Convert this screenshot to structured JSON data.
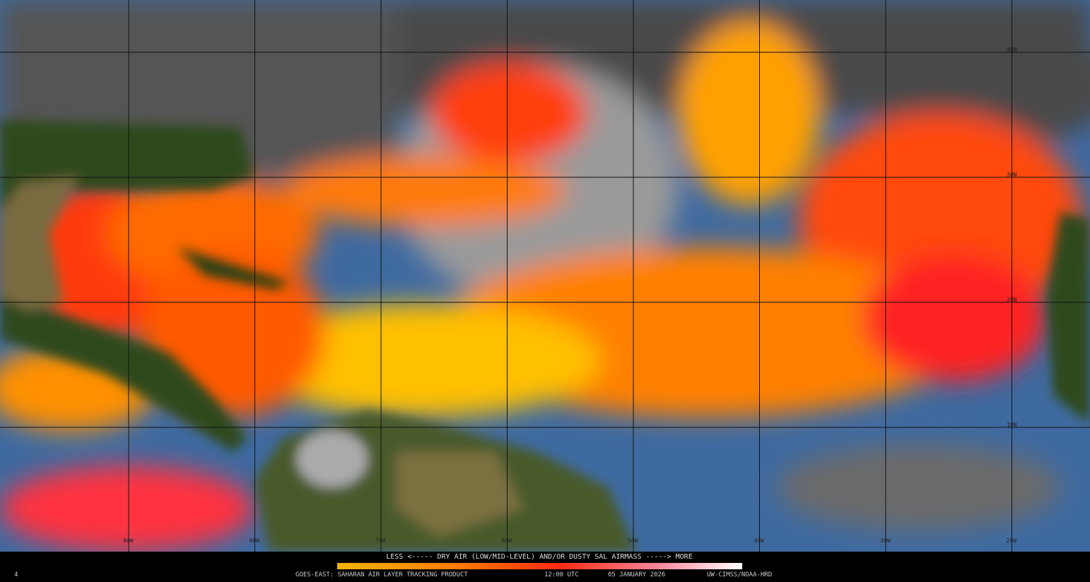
{
  "map": {
    "lat_labels": [
      "40N",
      "30N",
      "20N",
      "10N"
    ],
    "lon_labels": [
      "90W",
      "80W",
      "70W",
      "60W",
      "50W",
      "40W",
      "30W",
      "20W"
    ]
  },
  "legend": {
    "caption": "LESS <----- DRY AIR (LOW/MID-LEVEL) AND/OR DUSTY SAL AIRMASS -----> MORE"
  },
  "footer": {
    "frame": "4",
    "product": "GOES-EAST: SAHARAN AIR LAYER TRACKING PRODUCT",
    "time": "12:00 UTC",
    "date": "05 JANUARY 2026",
    "credit": "UW-CIMSS/NOAA-HRD"
  }
}
